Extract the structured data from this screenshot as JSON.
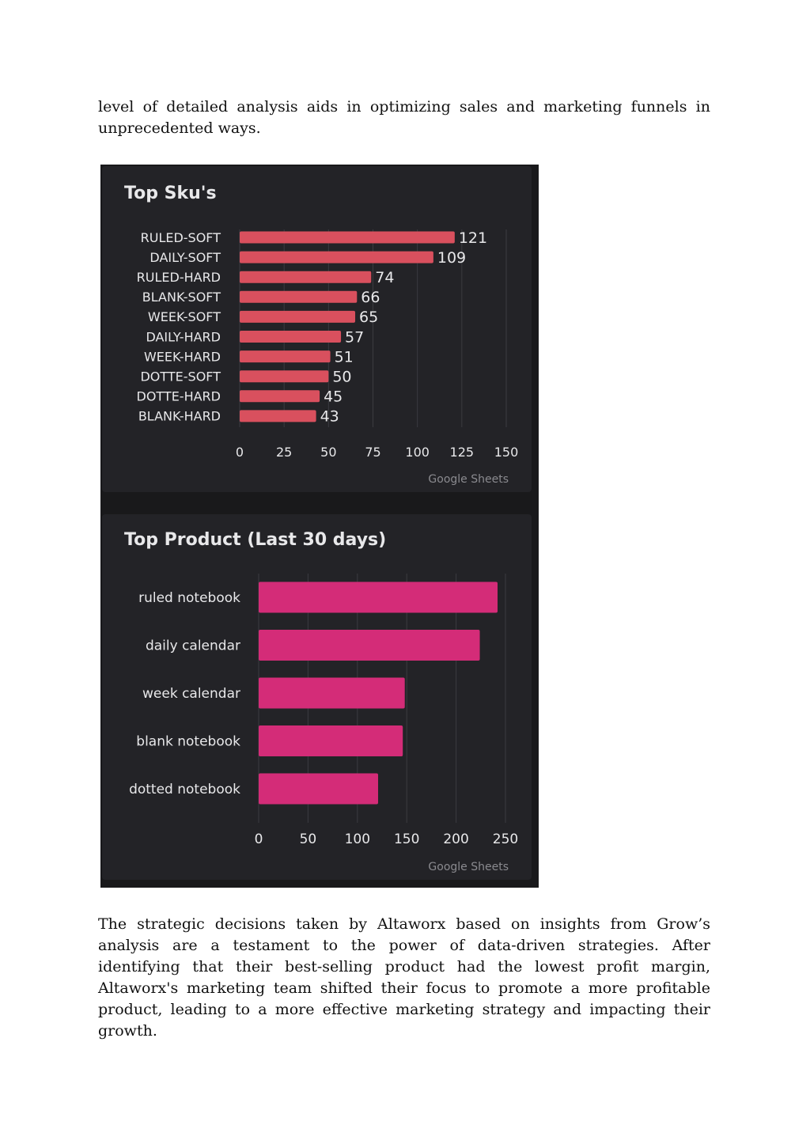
{
  "document": {
    "para_top": "level of detailed analysis aids in optimizing sales and marketing funnels in unprecedented ways.",
    "para_bottom": "The strategic decisions taken by Altaworx based on insights from Grow’s analysis are a testament to the power of data-driven strategies. After identifying that their best-selling product had the lowest profit margin, Altaworx's marketing team shifted their focus to promote a more profitable product, leading to a more effective marketing strategy and impacting their growth."
  },
  "chart_data": [
    {
      "type": "bar",
      "orientation": "horizontal",
      "title": "Top Sku's",
      "categories": [
        "RULED-SOFT",
        "DAILY-SOFT",
        "RULED-HARD",
        "BLANK-SOFT",
        "WEEK-SOFT",
        "DAILY-HARD",
        "WEEK-HARD",
        "DOTTE-SOFT",
        "DOTTE-HARD",
        "BLANK-HARD"
      ],
      "values": [
        121,
        109,
        74,
        66,
        65,
        57,
        51,
        50,
        45,
        43
      ],
      "data_labels": true,
      "xlim": [
        0,
        150
      ],
      "xticks": [
        0,
        25,
        50,
        75,
        100,
        125,
        150
      ],
      "grid": true,
      "bar_color": "#d9505e",
      "source": "Google Sheets"
    },
    {
      "type": "bar",
      "orientation": "horizontal",
      "title": "Top Product (Last 30 days)",
      "categories": [
        "ruled notebook",
        "daily calendar",
        "week calendar",
        "blank notebook",
        "dotted notebook"
      ],
      "values": [
        242,
        224,
        148,
        146,
        121
      ],
      "data_labels": false,
      "xlim": [
        0,
        250
      ],
      "xticks": [
        0,
        50,
        100,
        150,
        200,
        250
      ],
      "grid": true,
      "bar_color": "#d42c78",
      "source": "Google Sheets"
    }
  ],
  "theme": {
    "panel_bg": "#232327",
    "frame_bg": "#19191b",
    "text": "#e8e8ea",
    "grid": "#3b3b40"
  }
}
